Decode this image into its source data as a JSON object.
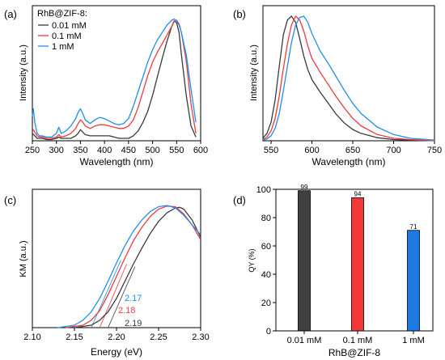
{
  "colors": {
    "black": "#3a3a3a",
    "red": "#f0393b",
    "blue": "#1f8ef1",
    "bar_black": "#404040",
    "bar_red": "#f4383a",
    "bar_blue": "#1e79e3"
  },
  "chart_data": [
    {
      "id": "a",
      "type": "line",
      "panel_label": "(a)",
      "xlabel": "Wavelength (nm)",
      "ylabel": "Intensity (a.u.)",
      "xlim": [
        250,
        600
      ],
      "ylim": [
        0,
        1.0
      ],
      "xticks": [
        "250",
        "300",
        "350",
        "400",
        "450",
        "500",
        "550",
        "600"
      ],
      "legend_title": "RhB@ZIF-8:",
      "legend_position": "top-left",
      "series": [
        {
          "name": "0.01 mM",
          "color": "#3a3a3a",
          "x": [
            250,
            255,
            260,
            265,
            270,
            280,
            290,
            300,
            305,
            310,
            320,
            330,
            340,
            345,
            350,
            355,
            360,
            370,
            380,
            390,
            400,
            410,
            420,
            430,
            440,
            450,
            460,
            470,
            480,
            490,
            500,
            510,
            520,
            530,
            540,
            545,
            550,
            555,
            560,
            570,
            580,
            590
          ],
          "y": [
            0.06,
            0.04,
            0.02,
            0.02,
            0.02,
            0.01,
            0.01,
            0.02,
            0.03,
            0.02,
            0.02,
            0.02,
            0.04,
            0.06,
            0.09,
            0.07,
            0.05,
            0.04,
            0.04,
            0.04,
            0.04,
            0.04,
            0.03,
            0.02,
            0.02,
            0.02,
            0.04,
            0.08,
            0.15,
            0.24,
            0.37,
            0.52,
            0.67,
            0.81,
            0.93,
            0.975,
            0.96,
            0.88,
            0.7,
            0.37,
            0.12,
            0.03
          ]
        },
        {
          "name": "0.1 mM",
          "color": "#f0393b",
          "x": [
            250,
            255,
            260,
            265,
            270,
            280,
            290,
            300,
            305,
            310,
            320,
            330,
            340,
            345,
            350,
            355,
            360,
            370,
            380,
            390,
            400,
            410,
            420,
            430,
            440,
            450,
            460,
            470,
            480,
            490,
            500,
            510,
            520,
            530,
            540,
            545,
            550,
            555,
            560,
            570,
            580,
            590
          ],
          "y": [
            0.1,
            0.07,
            0.04,
            0.03,
            0.03,
            0.02,
            0.02,
            0.03,
            0.05,
            0.03,
            0.04,
            0.06,
            0.1,
            0.14,
            0.17,
            0.15,
            0.12,
            0.1,
            0.12,
            0.13,
            0.13,
            0.12,
            0.11,
            0.1,
            0.1,
            0.12,
            0.17,
            0.27,
            0.4,
            0.53,
            0.64,
            0.72,
            0.79,
            0.86,
            0.93,
            0.97,
            0.98,
            0.95,
            0.88,
            0.65,
            0.3,
            0.06
          ]
        },
        {
          "name": "1 mM",
          "color": "#1f8ef1",
          "x": [
            250,
            252,
            255,
            260,
            265,
            270,
            280,
            290,
            300,
            305,
            310,
            320,
            330,
            340,
            345,
            350,
            355,
            360,
            370,
            380,
            390,
            400,
            410,
            420,
            430,
            440,
            450,
            460,
            470,
            480,
            490,
            500,
            510,
            520,
            530,
            540,
            545,
            550,
            555,
            560,
            570,
            580,
            590
          ],
          "y": [
            0.2,
            0.26,
            0.15,
            0.06,
            0.04,
            0.04,
            0.03,
            0.03,
            0.06,
            0.11,
            0.06,
            0.08,
            0.12,
            0.18,
            0.23,
            0.26,
            0.22,
            0.17,
            0.14,
            0.17,
            0.19,
            0.18,
            0.16,
            0.14,
            0.13,
            0.14,
            0.18,
            0.28,
            0.4,
            0.52,
            0.64,
            0.74,
            0.82,
            0.88,
            0.94,
            0.98,
            0.99,
            0.975,
            0.94,
            0.88,
            0.7,
            0.42,
            0.15
          ]
        }
      ]
    },
    {
      "id": "b",
      "type": "line",
      "panel_label": "(b)",
      "xlabel": "Wavelength (nm)",
      "ylabel": "Intensity (a.u.)",
      "xlim": [
        540,
        750
      ],
      "ylim": [
        0,
        1.0
      ],
      "xticks": [
        "550",
        "600",
        "650",
        "700",
        "750"
      ],
      "series": [
        {
          "color": "#3a3a3a",
          "x": [
            540,
            545,
            550,
            555,
            560,
            565,
            570,
            575,
            580,
            585,
            590,
            595,
            600,
            610,
            620,
            630,
            640,
            650,
            660,
            680,
            700,
            720,
            750
          ],
          "y": [
            0.02,
            0.06,
            0.15,
            0.33,
            0.6,
            0.85,
            0.97,
            1.0,
            0.95,
            0.82,
            0.68,
            0.57,
            0.49,
            0.39,
            0.3,
            0.21,
            0.14,
            0.09,
            0.06,
            0.025,
            0.01,
            0.005,
            0.0
          ]
        },
        {
          "color": "#f0393b",
          "x": [
            540,
            545,
            550,
            555,
            560,
            565,
            570,
            575,
            580,
            585,
            590,
            595,
            600,
            610,
            620,
            630,
            640,
            650,
            660,
            680,
            700,
            720,
            750
          ],
          "y": [
            0.01,
            0.03,
            0.08,
            0.18,
            0.36,
            0.58,
            0.78,
            0.93,
            1.0,
            0.97,
            0.88,
            0.76,
            0.66,
            0.55,
            0.45,
            0.35,
            0.26,
            0.18,
            0.12,
            0.05,
            0.02,
            0.01,
            0.0
          ]
        },
        {
          "color": "#1f8ef1",
          "x": [
            540,
            545,
            550,
            555,
            560,
            565,
            570,
            575,
            580,
            585,
            590,
            595,
            600,
            610,
            620,
            630,
            640,
            650,
            660,
            680,
            700,
            720,
            750
          ],
          "y": [
            0.005,
            0.015,
            0.04,
            0.1,
            0.22,
            0.4,
            0.6,
            0.79,
            0.93,
            0.99,
            1.0,
            0.95,
            0.86,
            0.72,
            0.62,
            0.51,
            0.4,
            0.3,
            0.22,
            0.11,
            0.05,
            0.02,
            0.005
          ]
        }
      ]
    },
    {
      "id": "c",
      "type": "line",
      "panel_label": "(c)",
      "xlabel": "Energy (eV)",
      "ylabel": "KM (a.u.)",
      "xlim": [
        2.1,
        2.3
      ],
      "ylim": [
        0,
        1.0
      ],
      "xticks": [
        "2.10",
        "2.15",
        "2.20",
        "2.25",
        "2.30"
      ],
      "annotations": [
        {
          "text": "2.17",
          "color": "#1f8ef1"
        },
        {
          "text": "2.18",
          "color": "#f0393b"
        },
        {
          "text": "2.19",
          "color": "#3a3a3a"
        }
      ],
      "series": [
        {
          "color": "#3a3a3a",
          "x": [
            2.15,
            2.17,
            2.18,
            2.19,
            2.2,
            2.21,
            2.22,
            2.23,
            2.24,
            2.25,
            2.26,
            2.27,
            2.275,
            2.28,
            2.29,
            2.3
          ],
          "y": [
            0.0,
            0.02,
            0.06,
            0.13,
            0.24,
            0.38,
            0.52,
            0.65,
            0.77,
            0.87,
            0.94,
            0.98,
            0.985,
            0.97,
            0.88,
            0.74
          ]
        },
        {
          "color": "#f0393b",
          "x": [
            2.14,
            2.16,
            2.17,
            2.18,
            2.19,
            2.2,
            2.21,
            2.22,
            2.23,
            2.24,
            2.25,
            2.26,
            2.27,
            2.28,
            2.29,
            2.3
          ],
          "y": [
            0.0,
            0.02,
            0.06,
            0.14,
            0.27,
            0.42,
            0.57,
            0.71,
            0.82,
            0.91,
            0.97,
            0.995,
            0.99,
            0.93,
            0.84,
            0.72
          ]
        },
        {
          "color": "#1f8ef1",
          "x": [
            2.13,
            2.15,
            2.16,
            2.17,
            2.18,
            2.19,
            2.2,
            2.21,
            2.22,
            2.23,
            2.24,
            2.25,
            2.26,
            2.27,
            2.28,
            2.29,
            2.3
          ],
          "y": [
            0.0,
            0.02,
            0.06,
            0.13,
            0.24,
            0.38,
            0.53,
            0.67,
            0.79,
            0.88,
            0.95,
            0.99,
            1.0,
            0.98,
            0.92,
            0.84,
            0.76
          ]
        }
      ],
      "tangents": [
        {
          "color": "#1f8ef1",
          "x": [
            2.17,
            2.205
          ],
          "y": [
            0.0,
            0.55
          ]
        },
        {
          "color": "#f0393b",
          "x": [
            2.18,
            2.212
          ],
          "y": [
            0.0,
            0.52
          ]
        },
        {
          "color": "#3a3a3a",
          "x": [
            2.19,
            2.222
          ],
          "y": [
            0.0,
            0.5
          ]
        }
      ]
    },
    {
      "id": "d",
      "type": "bar",
      "panel_label": "(d)",
      "xlabel": "RhB@ZIF-8",
      "ylabel": "QY (%)",
      "ylim": [
        0,
        100
      ],
      "yticks": [
        "0",
        "20",
        "40",
        "60",
        "80",
        "100"
      ],
      "categories": [
        "0.01 mM",
        "0.1 mM",
        "1 mM"
      ],
      "values": [
        99,
        94,
        71
      ],
      "value_labels": [
        "99",
        "94",
        "71"
      ],
      "colors": [
        "#404040",
        "#f4383a",
        "#1e79e3"
      ]
    }
  ]
}
